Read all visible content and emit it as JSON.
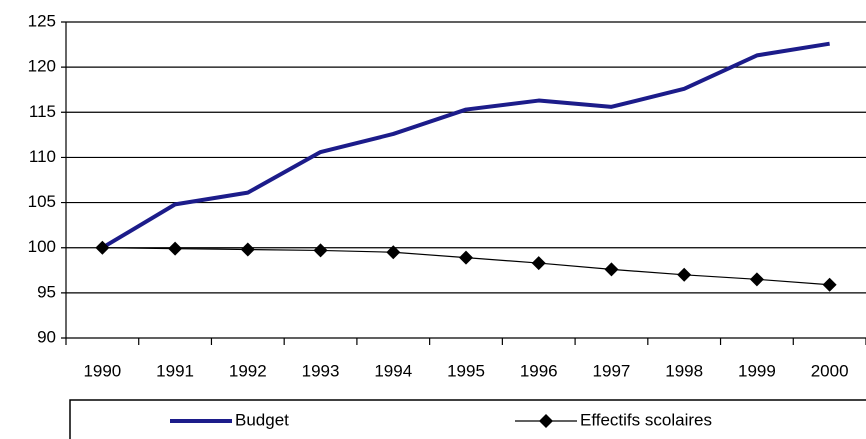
{
  "chart_data": {
    "type": "line",
    "categories": [
      "1990",
      "1991",
      "1992",
      "1993",
      "1994",
      "1995",
      "1996",
      "1997",
      "1998",
      "1999",
      "2000"
    ],
    "series": [
      {
        "name": "Budget",
        "color": "#1c1c8a",
        "values": [
          100,
          104.8,
          106.1,
          110.6,
          112.6,
          115.3,
          116.3,
          115.6,
          117.6,
          121.3,
          122.6
        ]
      },
      {
        "name": "Effectifs scolaires",
        "color": "#000000",
        "values": [
          100,
          99.9,
          99.8,
          99.7,
          99.5,
          98.9,
          98.3,
          97.6,
          97.0,
          96.5,
          95.9
        ]
      }
    ],
    "ylim": [
      90,
      125
    ],
    "yticks": [
      90,
      95,
      100,
      105,
      110,
      115,
      120,
      125
    ],
    "grid": true
  }
}
